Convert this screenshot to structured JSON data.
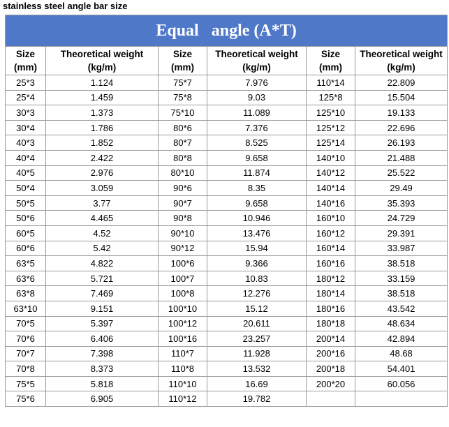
{
  "caption": "stainless steel angle bar size",
  "table": {
    "title": "Equal   angle (A*T)",
    "header": {
      "size_line1": "Size",
      "size_line2": "(mm)",
      "weight_line1": "Theoretical weight",
      "weight_line2": "(kg/m)"
    },
    "rows": [
      [
        "25*3",
        "1.124",
        "75*7",
        "7.976",
        "110*14",
        "22.809"
      ],
      [
        "25*4",
        "1.459",
        "75*8",
        "9.03",
        "125*8",
        "15.504"
      ],
      [
        "30*3",
        "1.373",
        "75*10",
        "11.089",
        "125*10",
        "19.133"
      ],
      [
        "30*4",
        "1.786",
        "80*6",
        "7.376",
        "125*12",
        "22.696"
      ],
      [
        "40*3",
        "1.852",
        "80*7",
        "8.525",
        "125*14",
        "26.193"
      ],
      [
        "40*4",
        "2.422",
        "80*8",
        "9.658",
        "140*10",
        "21.488"
      ],
      [
        "40*5",
        "2.976",
        "80*10",
        "11.874",
        "140*12",
        "25.522"
      ],
      [
        "50*4",
        "3.059",
        "90*6",
        "8.35",
        "140*14",
        "29.49"
      ],
      [
        "50*5",
        "3.77",
        "90*7",
        "9.658",
        "140*16",
        "35.393"
      ],
      [
        "50*6",
        "4.465",
        "90*8",
        "10.946",
        "160*10",
        "24.729"
      ],
      [
        "60*5",
        "4.52",
        "90*10",
        "13.476",
        "160*12",
        "29.391"
      ],
      [
        "60*6",
        "5.42",
        "90*12",
        "15.94",
        "160*14",
        "33.987"
      ],
      [
        "63*5",
        "4.822",
        "100*6",
        "9.366",
        "160*16",
        "38.518"
      ],
      [
        "63*6",
        "5.721",
        "100*7",
        "10.83",
        "180*12",
        "33.159"
      ],
      [
        "63*8",
        "7.469",
        "100*8",
        "12.276",
        "180*14",
        "38.518"
      ],
      [
        "63*10",
        "9.151",
        "100*10",
        "15.12",
        "180*16",
        "43.542"
      ],
      [
        "70*5",
        "5.397",
        "100*12",
        "20.611",
        "180*18",
        "48.634"
      ],
      [
        "70*6",
        "6.406",
        "100*16",
        "23.257",
        "200*14",
        "42.894"
      ],
      [
        "70*7",
        "7.398",
        "110*7",
        "11.928",
        "200*16",
        "48.68"
      ],
      [
        "70*8",
        "8.373",
        "110*8",
        "13.532",
        "200*18",
        "54.401"
      ],
      [
        "75*5",
        "5.818",
        "110*10",
        "16.69",
        "200*20",
        "60.056"
      ],
      [
        "75*6",
        "6.905",
        "110*12",
        "19.782",
        "",
        ""
      ]
    ]
  }
}
